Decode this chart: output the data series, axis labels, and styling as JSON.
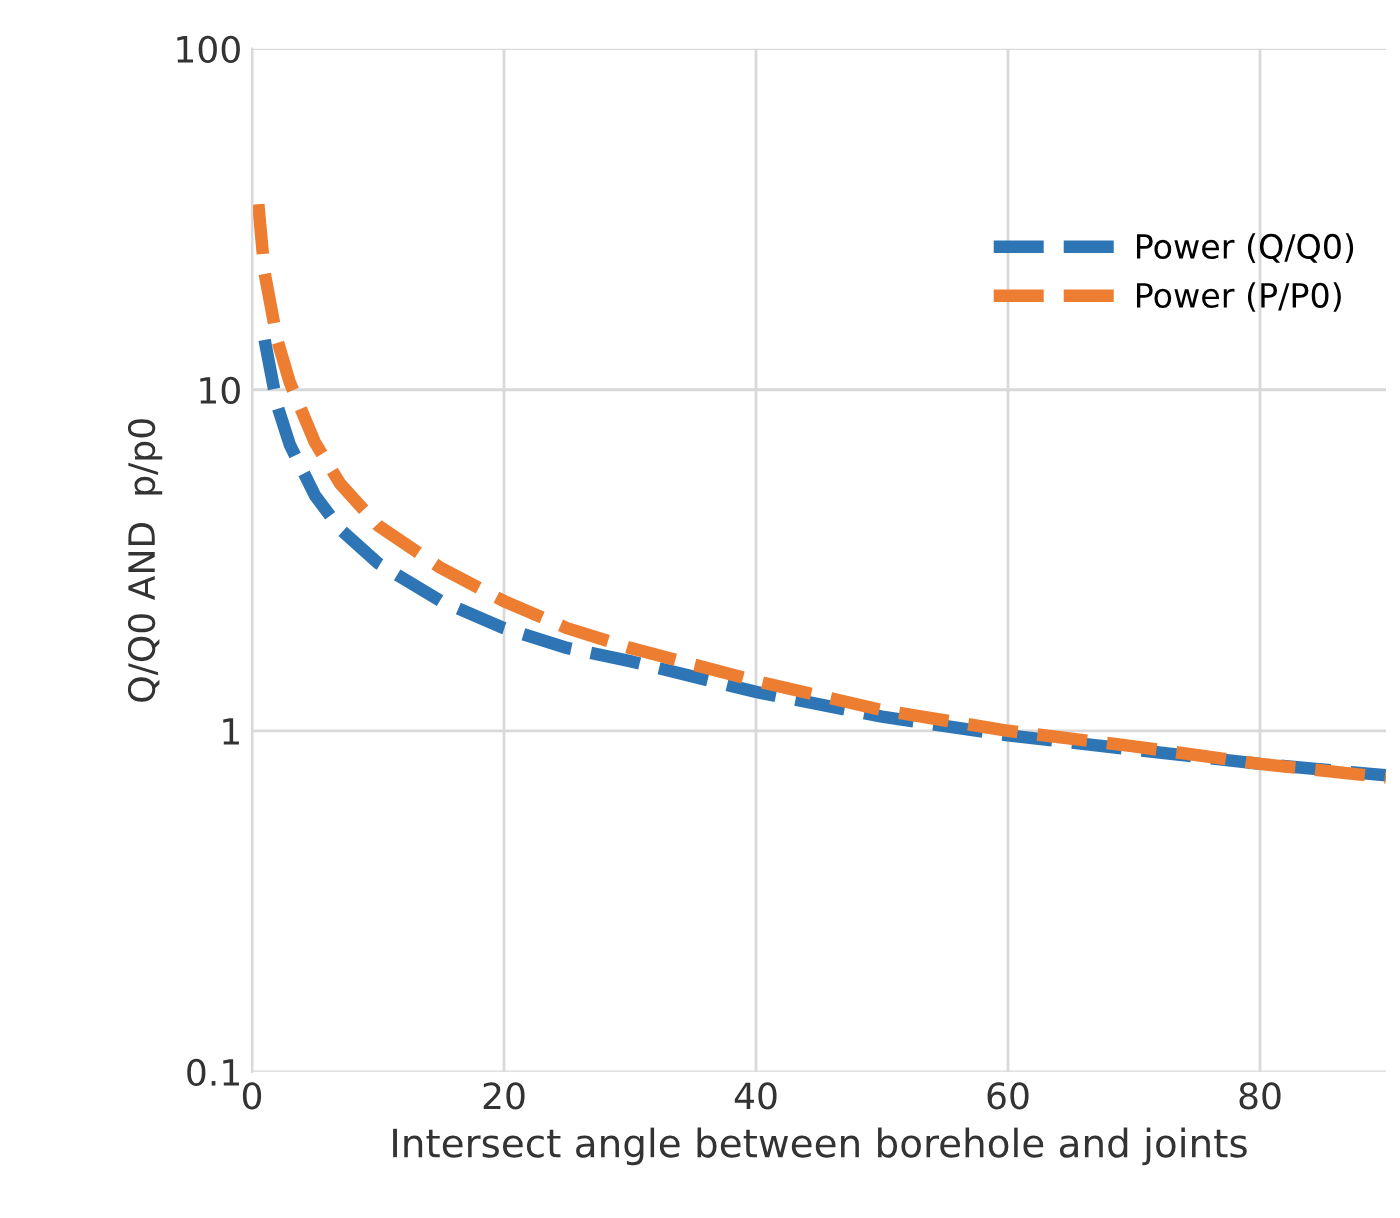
{
  "chart_data": {
    "type": "line",
    "xlabel": "Intersect angle between borehole and joints",
    "ylabel": "Q/Q0 AND  p/p0",
    "log": "y",
    "xlim": [
      0,
      90
    ],
    "xticks": [
      0,
      20,
      40,
      60,
      80
    ],
    "ylim": [
      0.1,
      100
    ],
    "yticks": [
      0.1,
      1,
      10,
      100
    ],
    "grid": true,
    "legend": "right",
    "line_style": "dashed",
    "marker": "none",
    "series": [
      {
        "name": "Power (Q/Q0)",
        "color": "#2e75b6",
        "x": [
          1,
          2,
          3,
          5,
          7,
          10,
          15,
          20,
          25,
          30,
          40,
          50,
          60,
          70,
          80,
          90
        ],
        "values": [
          14,
          9.0,
          6.9,
          4.9,
          3.9,
          3.1,
          2.4,
          2.0,
          1.75,
          1.6,
          1.3,
          1.1,
          0.97,
          0.88,
          0.8,
          0.74
        ]
      },
      {
        "name": "Power (P/P0)",
        "color": "#ed7d31",
        "x": [
          0.5,
          1,
          2,
          3,
          5,
          7,
          10,
          15,
          20,
          25,
          30,
          40,
          50,
          60,
          70,
          80,
          90
        ],
        "values": [
          35,
          22,
          14,
          10.5,
          7,
          5.3,
          4.0,
          3.0,
          2.4,
          2.0,
          1.75,
          1.4,
          1.15,
          1.0,
          0.9,
          0.8,
          0.73
        ]
      }
    ]
  }
}
